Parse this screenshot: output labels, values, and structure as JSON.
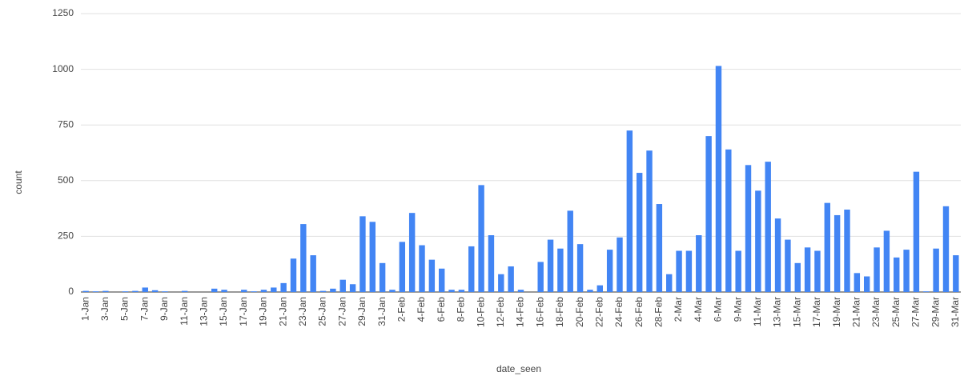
{
  "chart_data": {
    "type": "bar",
    "x_label": "date_seen",
    "y_label": "count",
    "categories": [
      "1-Jan",
      null,
      "3-Jan",
      null,
      "5-Jan",
      null,
      "7-Jan",
      null,
      "9-Jan",
      null,
      "11-Jan",
      null,
      "13-Jan",
      null,
      "15-Jan",
      null,
      "17-Jan",
      null,
      "19-Jan",
      null,
      "21-Jan",
      null,
      "23-Jan",
      null,
      "25-Jan",
      null,
      "27-Jan",
      null,
      "29-Jan",
      null,
      "31-Jan",
      null,
      "2-Feb",
      null,
      "4-Feb",
      null,
      "6-Feb",
      null,
      "8-Feb",
      null,
      "10-Feb",
      null,
      "12-Feb",
      null,
      "14-Feb",
      null,
      "16-Feb",
      null,
      "18-Feb",
      null,
      "20-Feb",
      null,
      "22-Feb",
      null,
      "24-Feb",
      null,
      "26-Feb",
      null,
      "28-Feb",
      null,
      "2-Mar",
      null,
      "4-Mar",
      null,
      "6-Mar",
      null,
      "9-Mar",
      null,
      "11-Mar",
      null,
      "13-Mar",
      null,
      "15-Mar",
      null,
      "17-Mar",
      null,
      "19-Mar",
      null,
      "21-Mar",
      null,
      "23-Mar",
      null,
      "25-Mar",
      null,
      "27-Mar",
      null,
      "29-Mar",
      null,
      "31-Mar"
    ],
    "values": [
      5,
      3,
      5,
      0,
      3,
      5,
      20,
      8,
      3,
      0,
      5,
      0,
      0,
      15,
      10,
      0,
      10,
      3,
      10,
      20,
      40,
      150,
      305,
      165,
      5,
      15,
      55,
      35,
      340,
      315,
      130,
      10,
      225,
      355,
      210,
      145,
      105,
      10,
      10,
      205,
      480,
      255,
      80,
      115,
      10,
      0,
      135,
      235,
      195,
      365,
      215,
      10,
      30,
      190,
      245,
      725,
      535,
      635,
      395,
      80,
      185,
      185,
      255,
      700,
      1015,
      640,
      185,
      570,
      455,
      585,
      330,
      235,
      130,
      200,
      185,
      400,
      345,
      370,
      85,
      70,
      200,
      275,
      155,
      190,
      540,
      3,
      195,
      385,
      165
    ],
    "color": "#4285f4",
    "ylim": [
      0,
      1250
    ],
    "yticks": [
      0,
      250,
      500,
      750,
      1000,
      1250
    ],
    "grid": true
  }
}
